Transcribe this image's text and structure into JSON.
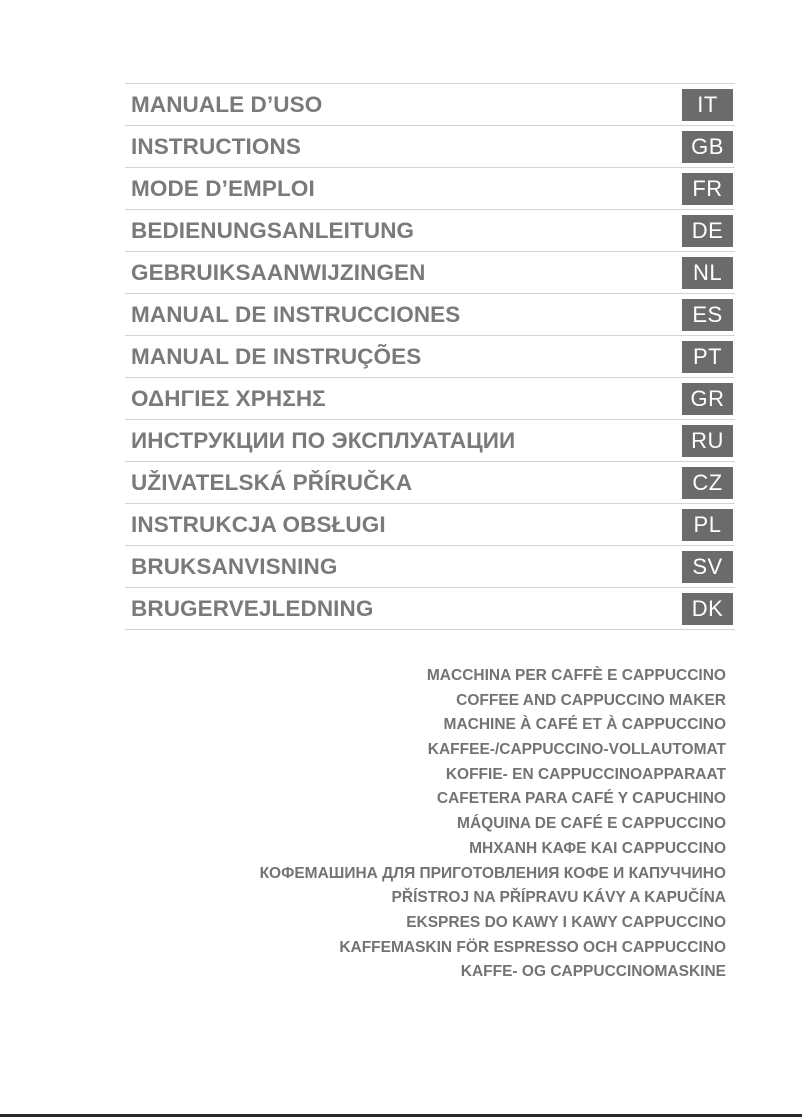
{
  "languages": [
    {
      "title": "MANUALE D’USO",
      "code": "IT"
    },
    {
      "title": "INSTRUCTIONS",
      "code": "GB"
    },
    {
      "title": "MODE D’EMPLOI",
      "code": "FR"
    },
    {
      "title": "BEDIENUNGSANLEITUNG",
      "code": "DE"
    },
    {
      "title": "GEBRUIKSAANWIJZINGEN",
      "code": "NL"
    },
    {
      "title": "MANUAL DE INSTRUCCIONES",
      "code": "ES"
    },
    {
      "title": "MANUAL DE INSTRUÇÕES",
      "code": "PT"
    },
    {
      "title": "ΟΔΗΓΙΕΣ ΧΡΗΣΗΣ",
      "code": "GR"
    },
    {
      "title": "ИНСТРУКЦИИ ПО ЭКСПЛУАТАЦИИ",
      "code": "RU"
    },
    {
      "title": "UŽIVATELSKÁ PŘÍRUČKA",
      "code": "CZ"
    },
    {
      "title": "INSTRUKCJA OBSŁUGI",
      "code": "PL"
    },
    {
      "title": "BRUKSANVISNING",
      "code": "SV"
    },
    {
      "title": "BRUGERVEJLEDNING",
      "code": "DK"
    }
  ],
  "product_names": [
    "MACCHINA PER CAFFÈ E CAPPUCCINO",
    "COFFEE AND CAPPUCCINO MAKER",
    "MACHINE À CAFÉ ET À CAPPUCCINO",
    "KAFFEE-/CAPPUCCINO-VOLLAUTOMAT",
    "KOFFIE- EN CAPPUCCINOAPPARAAT",
    "CAFETERA PARA CAFÉ Y CAPUCHINO",
    "MÁQUINA DE CAFÉ E CAPPUCCINO",
    "ΜΗΧΑΝΗ ΚΑΦΕ ΚΑΙ CAPPUCCINO",
    "КОФЕМАШИНА ДЛЯ ПРИГОТОВЛЕНИЯ КОФЕ И КАПУЧЧИНО",
    "PŘÍSTROJ NA PŘÍPRAVU KÁVY A KAPUČÍNA",
    "EKSPRES DO KAWY I KAWY CAPPUCCINO",
    "KAFFEMASKIN FÖR ESPRESSO OCH CAPPUCCINO",
    "KAFFE- OG CAPPUCCINOMASKINE"
  ],
  "colors": {
    "title_text": "#7a7a7a",
    "badge_bg": "#6b6b6b",
    "badge_text": "#ffffff",
    "rule": "#d4d4d4"
  }
}
